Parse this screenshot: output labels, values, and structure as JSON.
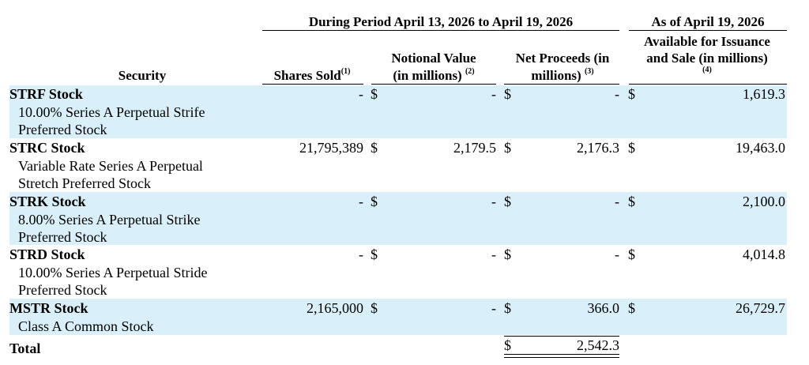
{
  "header": {
    "group1": "During Period April 13, 2026 to April 19, 2026",
    "group2": "As of April 19, 2026",
    "col_security": "Security",
    "col_shares": "Shares Sold",
    "col_shares_note": "(1)",
    "col_notional_l1": "Notional Value",
    "col_notional_l2": "(in millions)",
    "col_notional_note": "(2)",
    "col_net_l1": "Net Proceeds (in",
    "col_net_l2": "millions)",
    "col_net_note": "(3)",
    "col_avail_l1": "Available for Issuance",
    "col_avail_l2": "and Sale (in millions)",
    "col_avail_note": "(4)"
  },
  "rows": [
    {
      "security": "STRF Stock",
      "desc1": "10.00% Series A Perpetual Strife",
      "desc2": "Preferred Stock",
      "shares": "-",
      "notional": "-",
      "net": "-",
      "available": "1,619.3",
      "dollar": "$"
    },
    {
      "security": "STRC Stock",
      "desc1": "Variable Rate Series A Perpetual",
      "desc2": "Stretch Preferred Stock",
      "shares": "21,795,389",
      "notional": "2,179.5",
      "net": "2,176.3",
      "available": "19,463.0",
      "dollar": "$"
    },
    {
      "security": "STRK Stock",
      "desc1": "8.00% Series A Perpetual Strike",
      "desc2": "Preferred Stock",
      "shares": "-",
      "notional": "-",
      "net": "-",
      "available": "2,100.0",
      "dollar": "$"
    },
    {
      "security": "STRD Stock",
      "desc1": "10.00% Series A Perpetual Stride",
      "desc2": "Preferred Stock",
      "shares": "-",
      "notional": "-",
      "net": "-",
      "available": "4,014.8",
      "dollar": "$"
    },
    {
      "security": "MSTR Stock",
      "desc1": "Class A Common Stock",
      "shares": "2,165,000",
      "notional": "-",
      "net": "366.0",
      "available": "26,729.7",
      "dollar": "$"
    }
  ],
  "total": {
    "label": "Total",
    "dollar": "$",
    "net": "2,542.3"
  },
  "colors": {
    "band": "#d9f0fb",
    "text": "#000000"
  }
}
